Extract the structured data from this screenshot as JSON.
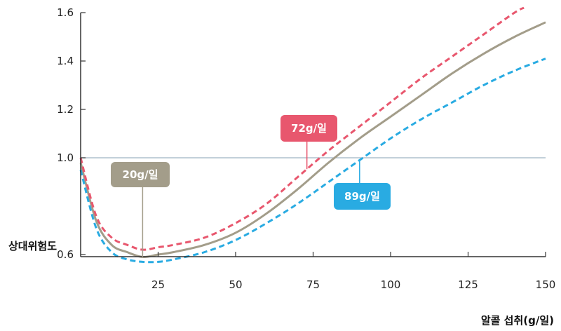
{
  "chart_data": {
    "type": "line",
    "xlabel": "알콜 섭취(g/일)",
    "ylabel": "상대위험도",
    "xlim": [
      0,
      150
    ],
    "ylim": [
      0.4,
      1.6
    ],
    "x_ticks": [
      25,
      50,
      75,
      100,
      125,
      150
    ],
    "y_ticks": [
      0.6,
      1.0,
      1.2,
      1.4,
      1.6
    ],
    "y_tick_labels": [
      "0.6",
      "1.0",
      "1.2",
      "1.4",
      "1.6"
    ],
    "reference_line": 1.0,
    "grid": false,
    "series": [
      {
        "style": "solid",
        "color": "#a39d8a",
        "label": "20g/일",
        "x": [
          0,
          5,
          10,
          15,
          20,
          25,
          30,
          40,
          50,
          60,
          70,
          80,
          90,
          100,
          110,
          120,
          130,
          140,
          150
        ],
        "values": [
          0.98,
          0.74,
          0.64,
          0.61,
          0.59,
          0.6,
          0.61,
          0.64,
          0.69,
          0.77,
          0.87,
          0.98,
          1.08,
          1.17,
          1.26,
          1.35,
          1.43,
          1.5,
          1.56
        ]
      },
      {
        "style": "dashed",
        "color": "#e8576e",
        "label": "72g/일",
        "x": [
          0,
          5,
          10,
          15,
          20,
          25,
          30,
          40,
          50,
          60,
          70,
          80,
          90,
          100,
          110,
          120,
          130,
          140,
          143
        ],
        "values": [
          1.0,
          0.76,
          0.67,
          0.64,
          0.62,
          0.63,
          0.64,
          0.67,
          0.73,
          0.81,
          0.92,
          1.03,
          1.13,
          1.23,
          1.33,
          1.42,
          1.51,
          1.6,
          1.62
        ]
      },
      {
        "style": "dashed",
        "color": "#29abe2",
        "label": "89g/일",
        "x": [
          0,
          5,
          10,
          15,
          20,
          25,
          30,
          40,
          50,
          60,
          70,
          80,
          90,
          100,
          110,
          120,
          130,
          140,
          150
        ],
        "values": [
          0.95,
          0.71,
          0.61,
          0.58,
          0.57,
          0.57,
          0.58,
          0.61,
          0.66,
          0.73,
          0.81,
          0.9,
          0.99,
          1.08,
          1.16,
          1.23,
          1.3,
          1.36,
          1.41
        ]
      }
    ],
    "callouts": [
      {
        "label": "20g/일",
        "x": 20,
        "color": "#a39d8a"
      },
      {
        "label": "72g/일",
        "x": 73,
        "color": "#e8576e"
      },
      {
        "label": "89g/일",
        "x": 90,
        "color": "#29abe2"
      }
    ]
  }
}
